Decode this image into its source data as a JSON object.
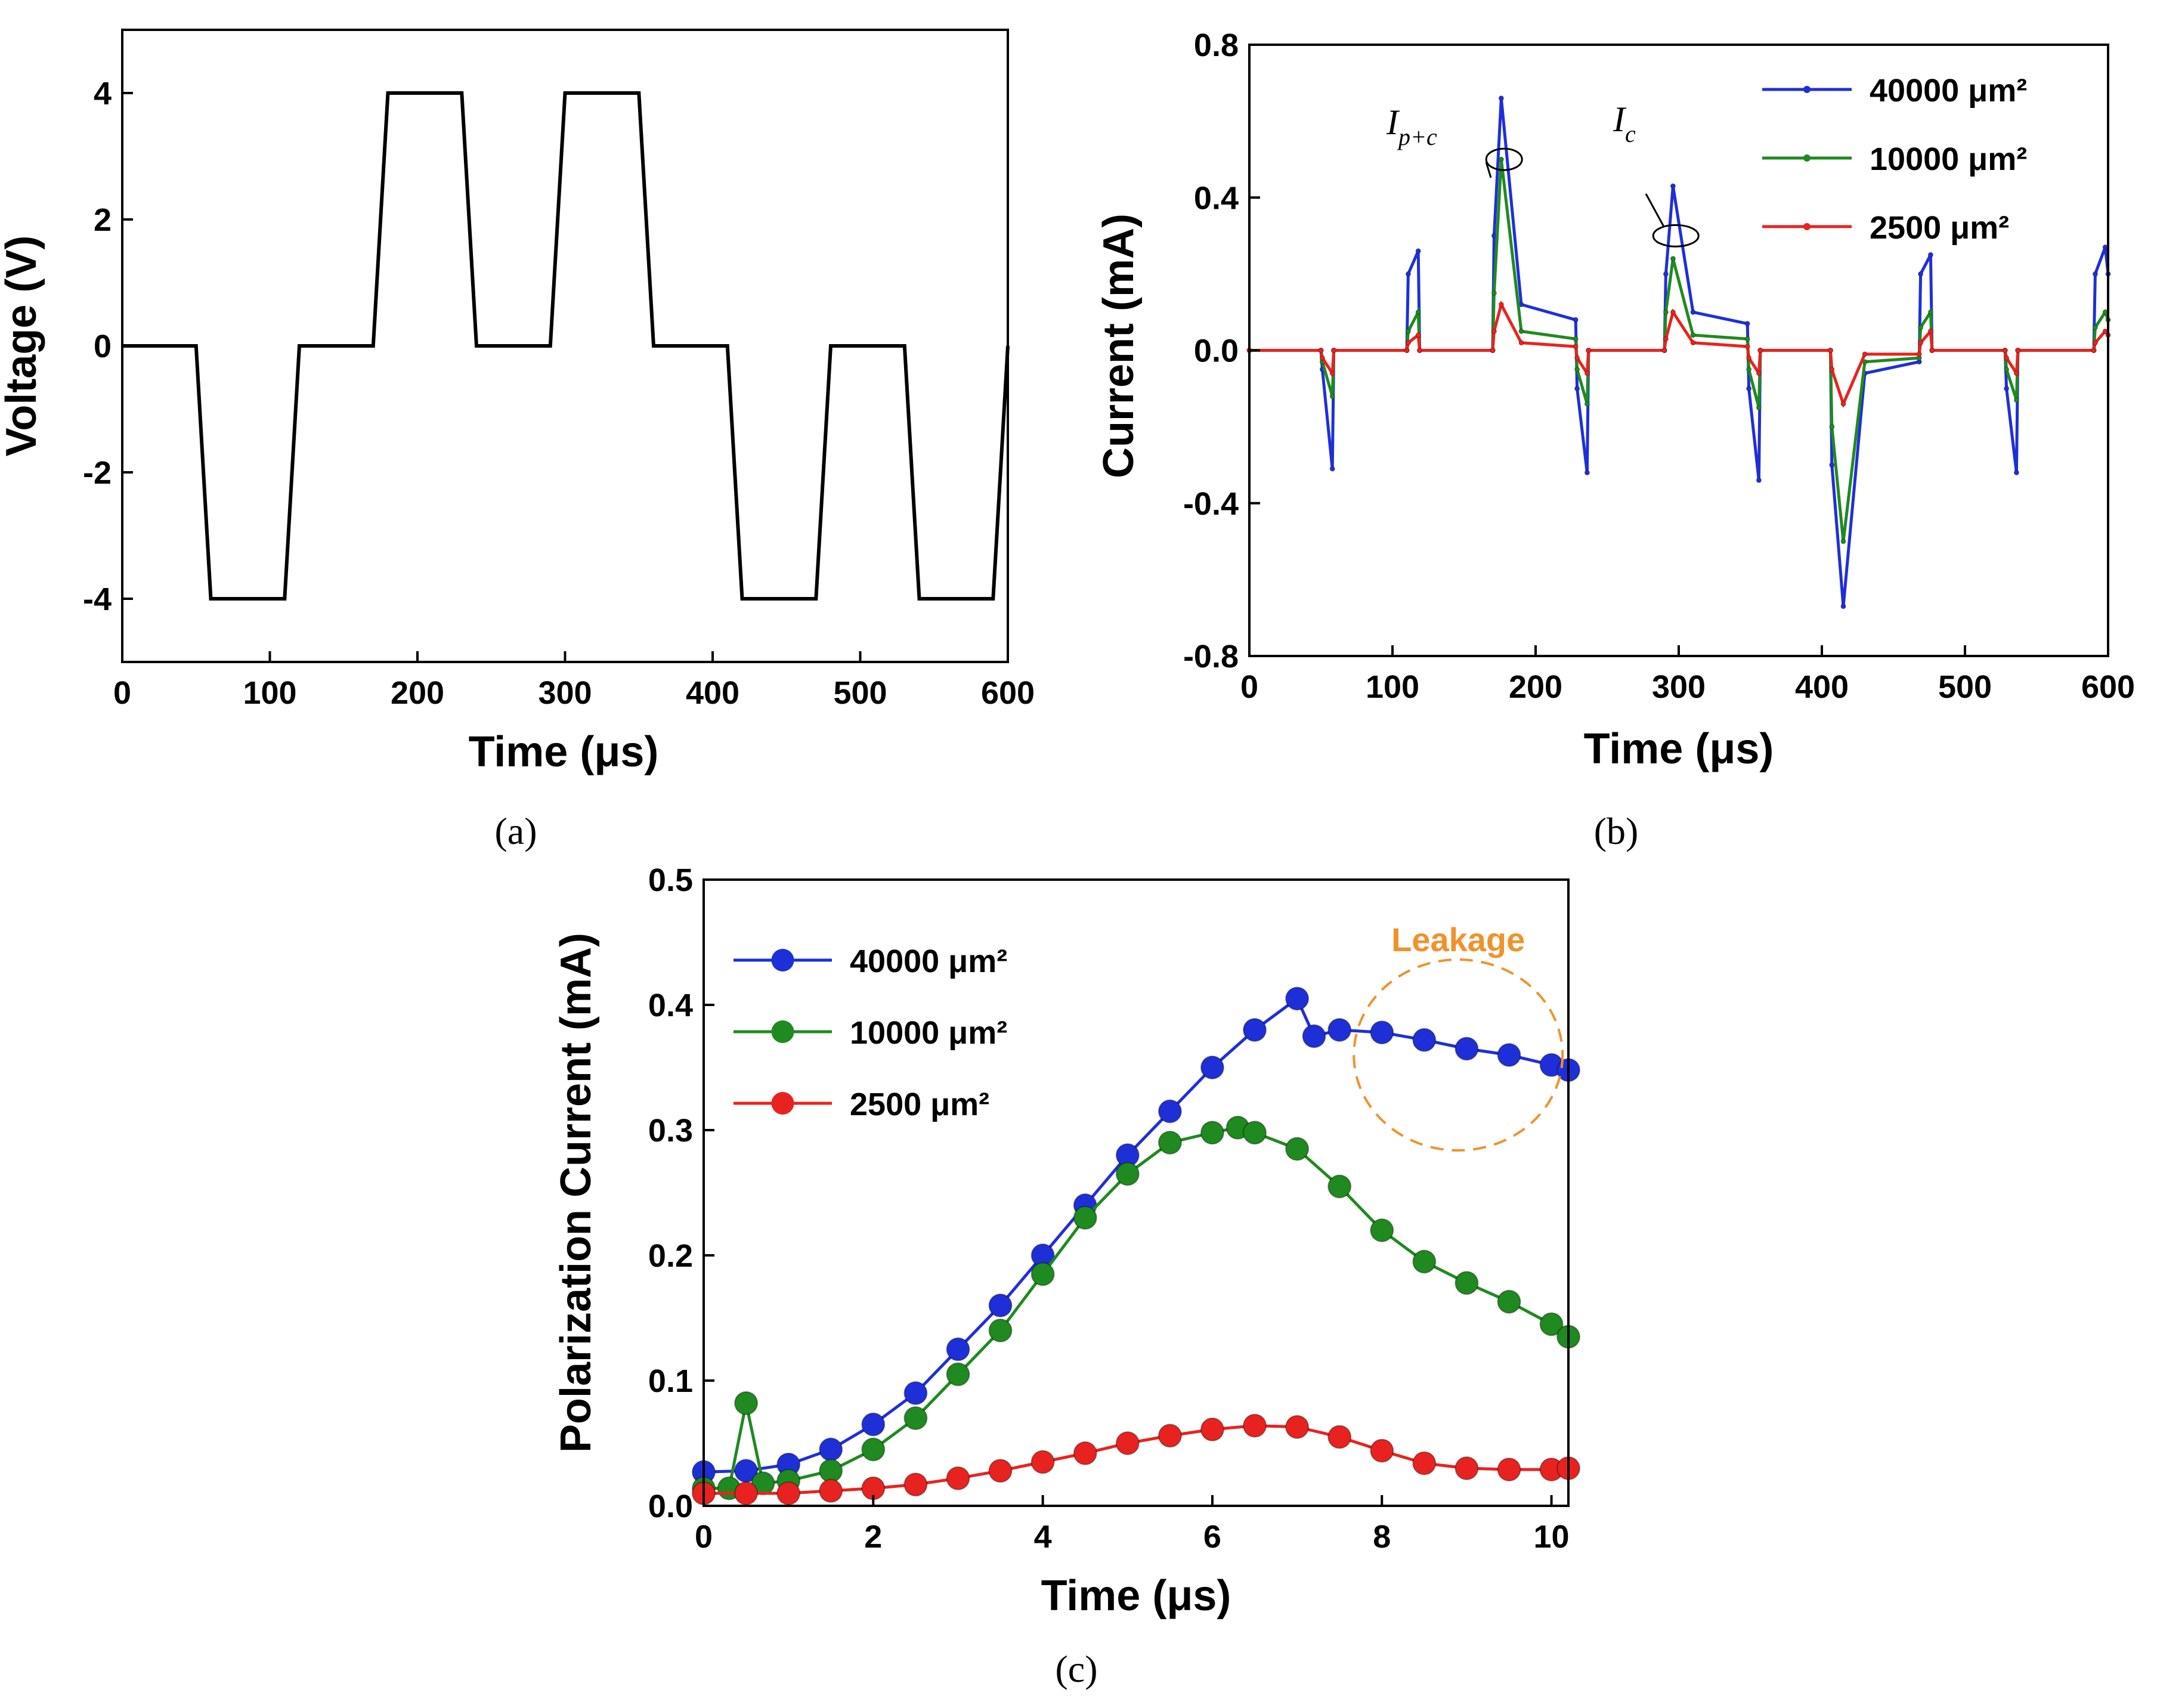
{
  "chart_data": [
    {
      "panel_label": "(a)",
      "type": "line",
      "xlabel": "Time (μs)",
      "ylabel": "Voltage (V)",
      "xlim": [
        0,
        600
      ],
      "ylim": [
        -5,
        5
      ],
      "xticks": [
        0,
        100,
        200,
        300,
        400,
        500,
        600
      ],
      "yticks": [
        -4,
        -2,
        0,
        2,
        4
      ],
      "series": [
        {
          "color": "#000000",
          "x": [
            0,
            50,
            60,
            110,
            120,
            170,
            180,
            230,
            240,
            290,
            300,
            350,
            360,
            410,
            420,
            470,
            480,
            530,
            540,
            590,
            600
          ],
          "y": [
            0,
            0,
            -4,
            -4,
            0,
            0,
            4,
            4,
            0,
            0,
            4,
            4,
            0,
            0,
            -4,
            -4,
            0,
            0,
            -4,
            -4,
            0
          ]
        }
      ]
    },
    {
      "panel_label": "(b)",
      "type": "line",
      "xlabel": "Time (μs)",
      "ylabel": "Current (mA)",
      "xlim": [
        0,
        600
      ],
      "ylim": [
        -0.8,
        0.8
      ],
      "xticks": [
        0,
        100,
        200,
        300,
        400,
        500,
        600
      ],
      "yticks": [
        "-0.8",
        "-0.4",
        "0.0",
        "0.4",
        "0.8"
      ],
      "legend_position": "top-right",
      "annotations": [
        "I_{p+c}",
        "I_c"
      ],
      "series": [
        {
          "name": "40000 μm²",
          "color": "#1f2fd8",
          "x": [
            0,
            50,
            51,
            58,
            59,
            110,
            111,
            118,
            119,
            170,
            171,
            176,
            190,
            228,
            229,
            236,
            237,
            290,
            291,
            296,
            310,
            348,
            349,
            356,
            357,
            406,
            407,
            415,
            430,
            468,
            469,
            476,
            477,
            528,
            529,
            536,
            537,
            590,
            591,
            598,
            600
          ],
          "y": [
            0,
            0,
            -0.05,
            -0.31,
            0,
            0,
            0.2,
            0.26,
            0,
            0,
            0.3,
            0.66,
            0.12,
            0.08,
            -0.1,
            -0.32,
            0,
            0,
            0.2,
            0.43,
            0.1,
            0.07,
            -0.1,
            -0.34,
            0,
            0,
            -0.3,
            -0.67,
            -0.06,
            -0.03,
            0.2,
            0.25,
            0,
            0,
            -0.1,
            -0.32,
            0,
            0,
            0.2,
            0.27,
            0.2
          ]
        },
        {
          "name": "10000 μm²",
          "color": "#1f8a1f",
          "x": [
            0,
            50,
            51,
            58,
            59,
            110,
            111,
            118,
            119,
            170,
            171,
            176,
            190,
            228,
            229,
            236,
            237,
            290,
            291,
            296,
            310,
            348,
            349,
            356,
            357,
            406,
            407,
            415,
            430,
            468,
            469,
            476,
            477,
            528,
            529,
            536,
            537,
            590,
            591,
            598,
            600
          ],
          "y": [
            0,
            0,
            -0.03,
            -0.12,
            0,
            0,
            0.05,
            0.1,
            0,
            0,
            0.15,
            0.5,
            0.05,
            0.03,
            -0.05,
            -0.14,
            0,
            0,
            0.1,
            0.24,
            0.04,
            0.03,
            -0.05,
            -0.15,
            0,
            0,
            -0.2,
            -0.5,
            -0.03,
            -0.02,
            0.06,
            0.1,
            0,
            0,
            -0.05,
            -0.13,
            0,
            0,
            0.06,
            0.1,
            0.08
          ]
        },
        {
          "name": "2500 μm²",
          "color": "#e8231f",
          "x": [
            0,
            50,
            51,
            58,
            59,
            110,
            111,
            118,
            119,
            170,
            171,
            176,
            190,
            228,
            229,
            236,
            237,
            290,
            291,
            296,
            310,
            348,
            349,
            356,
            357,
            406,
            407,
            415,
            430,
            468,
            469,
            476,
            477,
            528,
            529,
            536,
            537,
            590,
            591,
            598,
            600
          ],
          "y": [
            0,
            0,
            -0.02,
            -0.06,
            0,
            0,
            0.02,
            0.04,
            0,
            0,
            0.05,
            0.12,
            0.02,
            0.01,
            -0.02,
            -0.06,
            0,
            0,
            0.03,
            0.1,
            0.02,
            0.01,
            -0.02,
            -0.06,
            0,
            0,
            -0.05,
            -0.14,
            -0.01,
            -0.01,
            0.02,
            0.05,
            0,
            0,
            -0.02,
            -0.06,
            0,
            0,
            0.02,
            0.05,
            0.04
          ]
        }
      ]
    },
    {
      "panel_label": "(c)",
      "type": "line",
      "xlabel": "Time (μs)",
      "ylabel": "Polarization Current (mA)",
      "xlim": [
        0,
        10.2
      ],
      "ylim": [
        0,
        0.5
      ],
      "xticks": [
        0,
        2,
        4,
        6,
        8,
        10
      ],
      "yticks": [
        "0.0",
        "0.1",
        "0.2",
        "0.3",
        "0.4",
        "0.5"
      ],
      "legend_position": "top-left",
      "annotation": "Leakage",
      "annotation_color": "#f0922c",
      "series": [
        {
          "name": "40000 μm²",
          "color": "#1f2fd8",
          "x": [
            0,
            0.5,
            1,
            1.5,
            2,
            2.5,
            3,
            3.5,
            4,
            4.5,
            5,
            5.5,
            6,
            6.5,
            7,
            7.2,
            7.5,
            8,
            8.5,
            9,
            9.5,
            10,
            10.2
          ],
          "y": [
            0.027,
            0.028,
            0.033,
            0.045,
            0.065,
            0.09,
            0.125,
            0.16,
            0.2,
            0.24,
            0.28,
            0.315,
            0.35,
            0.38,
            0.405,
            0.375,
            0.38,
            0.378,
            0.372,
            0.365,
            0.36,
            0.352,
            0.348
          ]
        },
        {
          "name": "10000 μm²",
          "color": "#1f8a1f",
          "x": [
            0,
            0.3,
            0.5,
            0.7,
            1,
            1.5,
            2,
            2.5,
            3,
            3.5,
            4,
            4.5,
            5,
            5.5,
            6,
            6.3,
            6.5,
            7,
            7.5,
            8,
            8.5,
            9,
            9.5,
            10,
            10.2
          ],
          "y": [
            0.014,
            0.014,
            0.082,
            0.018,
            0.02,
            0.028,
            0.045,
            0.07,
            0.105,
            0.14,
            0.185,
            0.23,
            0.265,
            0.29,
            0.298,
            0.302,
            0.298,
            0.285,
            0.255,
            0.22,
            0.195,
            0.178,
            0.163,
            0.145,
            0.135
          ]
        },
        {
          "name": "2500 μm²",
          "color": "#e8231f",
          "x": [
            0,
            0.5,
            1,
            1.5,
            2,
            2.5,
            3,
            3.5,
            4,
            4.5,
            5,
            5.5,
            6,
            6.5,
            7,
            7.5,
            8,
            8.5,
            9,
            9.5,
            10,
            10.2
          ],
          "y": [
            0.01,
            0.01,
            0.01,
            0.012,
            0.014,
            0.017,
            0.022,
            0.028,
            0.035,
            0.042,
            0.05,
            0.056,
            0.061,
            0.064,
            0.063,
            0.055,
            0.044,
            0.034,
            0.03,
            0.029,
            0.029,
            0.03
          ]
        }
      ]
    }
  ]
}
